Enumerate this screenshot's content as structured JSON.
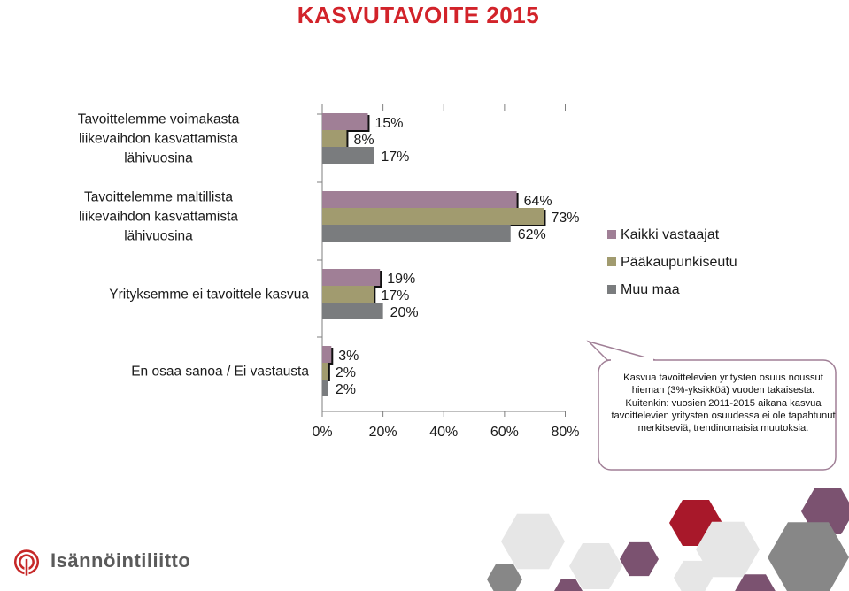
{
  "title": "KASVUTAVOITE 2015",
  "chart_data": {
    "type": "bar",
    "orientation": "horizontal",
    "categories": [
      [
        "Tavoittelemme voimakasta",
        "liikevaihdon kasvattamista",
        "lähivuosina"
      ],
      [
        "Tavoittelemme maltillista",
        "liikevaihdon kasvattamista",
        "lähivuosina"
      ],
      [
        "Yrityksemme ei tavoittele kasvua"
      ],
      [
        "En osaa sanoa / Ei vastausta"
      ]
    ],
    "series": [
      {
        "name": "Kaikki vastaajat",
        "color": "#a07f96",
        "values": [
          15,
          64,
          19,
          3
        ]
      },
      {
        "name": "Pääkaupunkiseutu",
        "color": "#a19b6f",
        "values": [
          8,
          73,
          17,
          2
        ]
      },
      {
        "name": "Muu maa",
        "color": "#7a7c7e",
        "values": [
          17,
          62,
          20,
          2
        ]
      }
    ],
    "value_suffix": "%",
    "xlim": [
      0,
      80
    ],
    "xticks": [
      0,
      20,
      40,
      60,
      80
    ],
    "legend": "right",
    "grid": false
  },
  "callout": {
    "paragraph1": "Kasvua tavoittelevien yritysten osuus noussut hieman (3%-yksikköä) vuoden takaisesta.",
    "paragraph2": "Kuitenkin: vuosien 2011-2015 aikana kasvua tavoittelevien yritysten osuudessa ei ole tapahtunut merkitseviä, trendinomaisia muutoksia."
  },
  "logo_text": "Isännöintiliitto",
  "decor_colors": {
    "grey": "#e6e6e6",
    "darkgrey": "#878787",
    "purple": "#7b5270",
    "red": "#a8182a"
  }
}
